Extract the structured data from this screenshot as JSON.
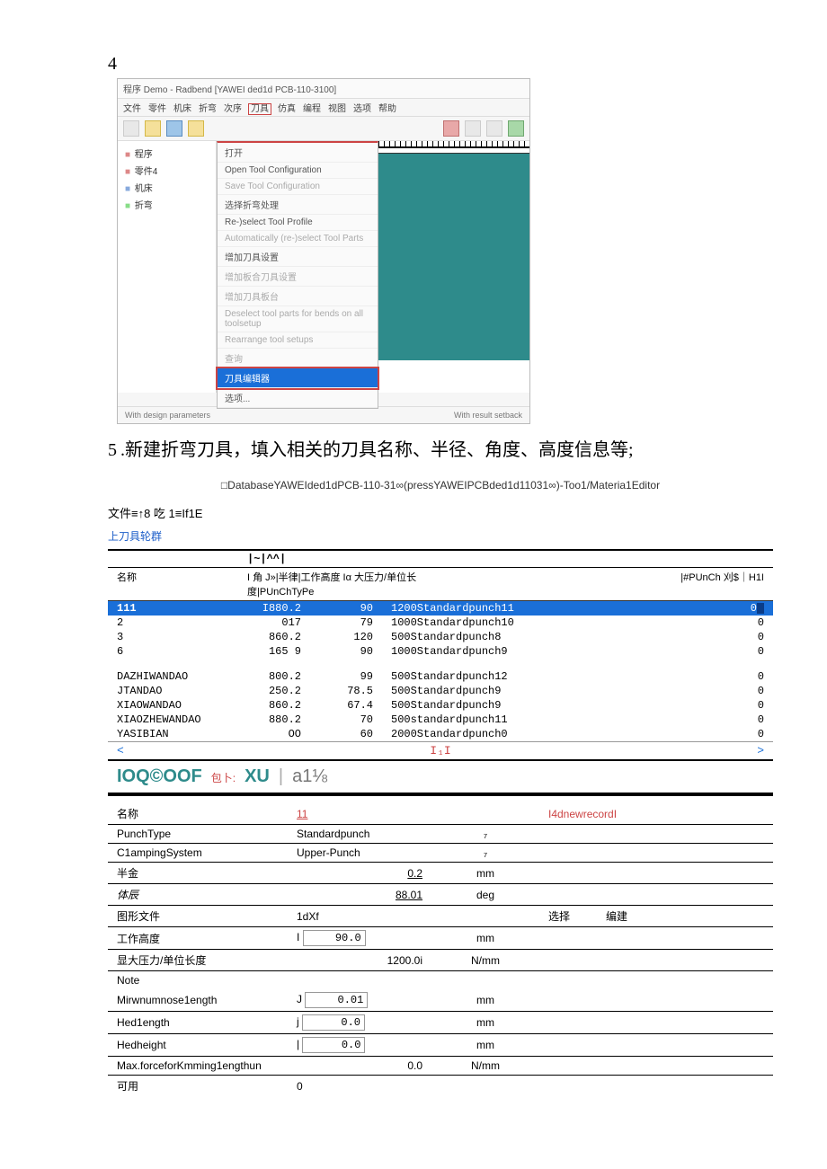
{
  "step4": {
    "num": "4"
  },
  "app": {
    "title": "程序 Demo - Radbend [YAWEI ded1d PCB-110-3100]",
    "menu": [
      "文件",
      "零件",
      "机床",
      "折弯",
      "次序",
      "刀具",
      "仿真",
      "编程",
      "视图",
      "选项",
      "帮助"
    ],
    "tree": [
      {
        "color": "#d88",
        "label": "程序"
      },
      {
        "color": "#d88",
        "label": "零件4"
      },
      {
        "color": "#8ad",
        "label": "机床"
      },
      {
        "color": "#8d8",
        "label": "折弯"
      }
    ],
    "dropdown": [
      {
        "label": "打开",
        "dim": false
      },
      {
        "label": "Open Tool Configuration",
        "dim": false
      },
      {
        "label": "Save Tool Configuration",
        "dim": true
      },
      {
        "label": "选择折弯处理",
        "dim": false
      },
      {
        "label": "Re-)select Tool Profile",
        "dim": false
      },
      {
        "label": "Automatically (re-)select Tool Parts",
        "dim": true
      },
      {
        "label": "增加刀具设置",
        "dim": false
      },
      {
        "label": "增加板合刀具设置",
        "dim": true
      },
      {
        "label": "增加刀具板台",
        "dim": true
      },
      {
        "label": "Deselect tool parts for bends on all toolsetup",
        "dim": true
      },
      {
        "label": "Rearrange tool setups",
        "dim": true
      },
      {
        "label": "查询",
        "dim": true
      },
      {
        "label": "刀具编辑器",
        "dim": false,
        "sel": true
      },
      {
        "label": "选项...",
        "dim": false
      }
    ],
    "status_left": "With design parameters",
    "status_right": "With result setback",
    "nav": "( ← → )"
  },
  "step5": {
    "num": "5",
    "text": ".新建折弯刀具，填入相关的刀具名称、半径、角度、高度信息等;"
  },
  "editor": {
    "dbpath": "□DatabaseYAWEIded1dPCB-110-31∞(pressYAWEIPCBded1d11031∞)-Too1/Materia1Editor",
    "subheader": "文件≡↑8 吃 1≡If1E",
    "link": "上刀具轮群",
    "sym": {
      "c1": "",
      "c2": "|~|^^|",
      "c3": "",
      "c4": ""
    },
    "headrow": {
      "c1": "名称",
      "c2": "I 角 J»|半律|工作高度 Iα 大压力/单位长度|PUnChTyPe",
      "c3": "|#PUnCh 刈$｜H1I"
    },
    "rows": [
      {
        "sel": true,
        "c1": "111",
        "c2": "I880.2",
        "c3": "90",
        "c4": "1200Standardpunch11",
        "c5": "0"
      },
      {
        "c1": "2",
        "c2": "017",
        "c3": "79",
        "c4": "1000Standardpunch10",
        "c5": "0"
      },
      {
        "c1": "3",
        "c2": "860.2",
        "c3": "120",
        "c4": "500Standardpunch8",
        "c5": "0"
      },
      {
        "c1": "6",
        "c2": "165  9",
        "c3": "90",
        "c4": "1000Standardpunch9",
        "c5": "0"
      },
      {
        "blank": true
      },
      {
        "c1": "DAZHIWANDAO",
        "c2": "800.2",
        "c3": "99",
        "c4": "500Standardpunch12",
        "c5": "0"
      },
      {
        "c1": "JTANDAO",
        "c2": "250.2",
        "c3": "78.5",
        "c4": "500Standardpunch9",
        "c5": "0"
      },
      {
        "c1": "XIAOWANDAO",
        "c2": "860.2",
        "c3": "67.4",
        "c4": "500Standardpunch9",
        "c5": "0"
      },
      {
        "c1": "XIAOZHEWANDAO",
        "c2": "880.2",
        "c3": "70",
        "c4": "500standardpunch11",
        "c5": "0"
      },
      {
        "c1": "YASIBIAN",
        "c2": "OO",
        "c3": "60",
        "c4": "2000Standardpunch0",
        "c5": "0"
      }
    ],
    "scroll": {
      "left": "<",
      "mid": "I₁I",
      "right": ">"
    },
    "heading": {
      "t1": "IOQ©OOF",
      "t2": "包卜:",
      "t3": "XU",
      "t4": "a1⅛"
    },
    "form": [
      {
        "label": "名称",
        "val": "11",
        "valred": true,
        "unit": "",
        "extra": "I4dnewrecordI",
        "extrared": true,
        "u": true
      },
      {
        "label": "PunchType",
        "val": "Standardpunch",
        "unit": "₇"
      },
      {
        "label": "C1ampingSystem",
        "val": "Upper-Punch",
        "unit": "₇"
      },
      {
        "label": "半金",
        "val": "0.2",
        "valright": true,
        "unit": "mm",
        "u": true
      },
      {
        "label": "体辰",
        "italic": true,
        "val": "88.01",
        "valright": true,
        "unit": "deg",
        "u": true
      },
      {
        "label": "图形文件",
        "val": "1dXf",
        "unit": "",
        "extra1": "选择",
        "extra2": "编建"
      },
      {
        "label": "工作高度",
        "val": "I",
        "input": "90.0",
        "unit": "mm"
      },
      {
        "label": "显大压力/单位长度",
        "val": "1200.0i",
        "valright": true,
        "unit": "N/mm"
      },
      {
        "label": "Note",
        "nb": true
      },
      {
        "label": "Mirwnumnose1ength",
        "val": "J",
        "input": "0.01",
        "unit": "mm",
        "valinputgap": true
      },
      {
        "label": "Hed1ength",
        "val": "j",
        "input": "0.0",
        "unit": "mm"
      },
      {
        "label": "Hedheight",
        "val": "|",
        "input": "0.0",
        "unit": "mm"
      },
      {
        "label": "Max.forceforKmming1engthun",
        "val": "0.0",
        "valright": true,
        "unit": "N/mm"
      },
      {
        "label": "可用",
        "val": "0",
        "nb": true
      }
    ]
  }
}
